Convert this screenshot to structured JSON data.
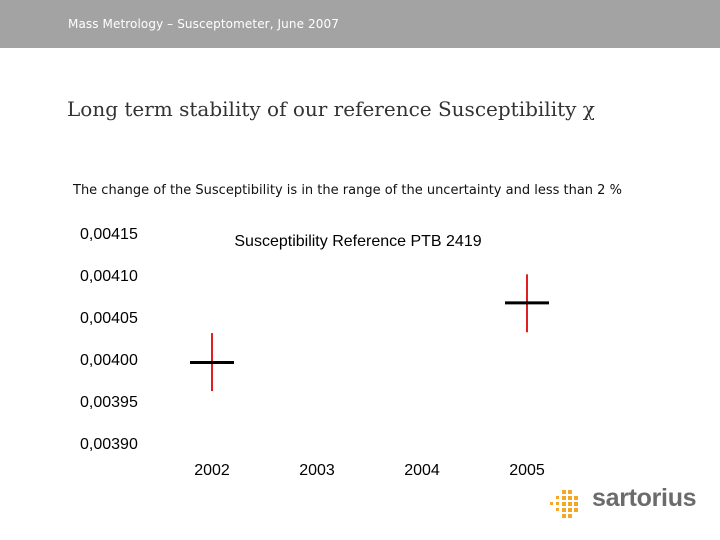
{
  "header": {
    "text": "Mass Metrology – Susceptometer, June 2007"
  },
  "slide": {
    "title": "Long term stability of our reference Susceptibility χ",
    "subtitle": "The change of the Susceptibility is in the range of the uncertainty and less than 2 %"
  },
  "brand": {
    "name": "sartorius",
    "logo_icon": "dot-grid-logo-icon",
    "accent": "#f5a623",
    "text_color": "#6b6b6b"
  },
  "chart_data": {
    "type": "scatter",
    "title": "Susceptibility Reference PTB 2419",
    "xlabel": "",
    "ylabel": "",
    "categories": [
      "2002",
      "2003",
      "2004",
      "2005"
    ],
    "ylim": [
      0.0039,
      0.00415
    ],
    "yticks": [
      0.00415,
      0.0041,
      0.00405,
      0.004,
      0.00395,
      0.0039
    ],
    "ytick_labels": [
      "0,00415",
      "0,00410",
      "0,00405",
      "0,00400",
      "0,00395",
      "0,00390"
    ],
    "grid": false,
    "points": [
      {
        "x": "2002",
        "y": 0.003997,
        "y_low": 0.003963,
        "y_high": 0.004032
      },
      {
        "x": "2005",
        "y": 0.004068,
        "y_low": 0.004033,
        "y_high": 0.004102
      }
    ],
    "marker_color": "#000000",
    "errorbar_color": "#e02020"
  }
}
